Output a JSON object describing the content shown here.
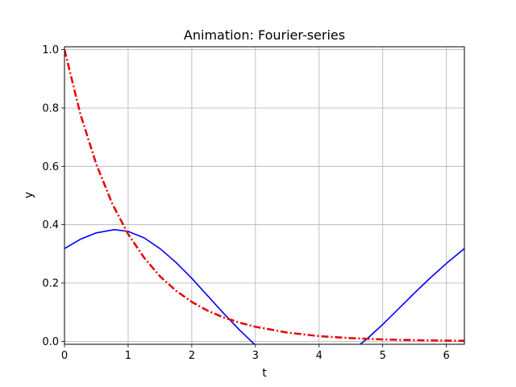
{
  "chart_data": {
    "type": "line",
    "title": "Animation: Fourier-series",
    "xlabel": "t",
    "ylabel": "y",
    "xlim": [
      0,
      6.2832
    ],
    "ylim": [
      -0.01,
      1.01
    ],
    "grid": true,
    "x_ticks": [
      "0",
      "1",
      "2",
      "3",
      "4",
      "5",
      "6"
    ],
    "y_ticks": [
      "0.0",
      "0.2",
      "0.4",
      "0.6",
      "0.8",
      "1.0"
    ],
    "series": [
      {
        "color": "#0000ff",
        "style": "solid",
        "x": [
          0,
          0.25,
          0.5,
          0.785,
          1.0,
          1.25,
          1.5,
          1.75,
          2.0,
          2.25,
          2.5,
          2.75,
          3.0,
          3.25,
          4.6,
          4.75,
          5.0,
          5.25,
          5.5,
          5.75,
          6.0,
          6.2832
        ],
        "y": [
          0.318,
          0.35,
          0.372,
          0.383,
          0.377,
          0.355,
          0.318,
          0.271,
          0.216,
          0.156,
          0.096,
          0.039,
          -0.013,
          -0.057,
          -0.018,
          0.008,
          0.058,
          0.112,
          0.166,
          0.218,
          0.267,
          0.318
        ]
      },
      {
        "color": "#e60000",
        "style": "dashdot",
        "x": [
          0,
          0.25,
          0.5,
          0.75,
          1.0,
          1.25,
          1.5,
          1.75,
          2.0,
          2.25,
          2.5,
          2.75,
          3.0,
          3.5,
          4.0,
          4.5,
          5.0,
          5.5,
          6.0,
          6.2832
        ],
        "y": [
          1.0,
          0.779,
          0.607,
          0.472,
          0.368,
          0.287,
          0.223,
          0.174,
          0.135,
          0.105,
          0.082,
          0.064,
          0.05,
          0.03,
          0.018,
          0.011,
          0.0067,
          0.0041,
          0.0025,
          0.0019
        ]
      }
    ]
  }
}
